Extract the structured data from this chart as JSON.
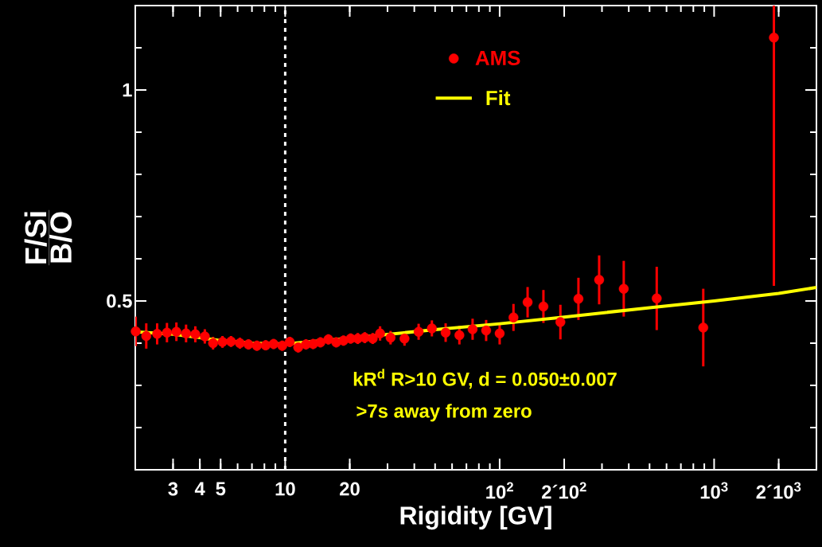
{
  "chart_data": {
    "type": "scatter",
    "xlabel": "Rigidity [GV]",
    "ylabel": "\\frac{\\textbf{F/Si}}{\\textbf{B/O}}",
    "log": "x",
    "xlim": [
      2,
      3000
    ],
    "ylim": [
      0.1,
      1.2
    ],
    "xticks": [
      3,
      4,
      5,
      10,
      20,
      {
        "value": 100,
        "label": "10$^{2}$"
      },
      {
        "value": 200,
        "label": "2´10$^{2}$"
      },
      {
        "value": 1000,
        "label": "10$^{3}$"
      },
      {
        "value": 2000,
        "label": "2´10$^{3}$"
      }
    ],
    "yticks": [
      {
        "value": 0.2,
        "label": null
      },
      {
        "value": 0.3,
        "label": null
      },
      {
        "value": 0.4,
        "label": null
      },
      0.5,
      {
        "value": 0.6,
        "label": null
      },
      {
        "value": 0.7,
        "label": null
      },
      {
        "value": 0.8,
        "label": null
      },
      {
        "value": 0.9,
        "label": null
      },
      1,
      {
        "value": 1.1,
        "label": null
      }
    ],
    "marker": "circle",
    "legend": "top",
    "ref_lines": [
      {
        "axis": "x",
        "value": 10,
        "color": "#ffffff",
        "line_style": "dotted"
      }
    ],
    "annotations": [
      "kR$^{d}$ R>10 GV, d = 0.050±0.007",
      ">7s away from zero"
    ],
    "series": [
      {
        "name": "AMS",
        "color": "#ff0000",
        "x": [
          2.01,
          2.25,
          2.53,
          2.81,
          3.11,
          3.45,
          3.81,
          4.22,
          4.61,
          5.1,
          5.59,
          6.15,
          6.74,
          7.38,
          8.11,
          8.83,
          9.69,
          10.5,
          11.5,
          12.5,
          13.5,
          14.6,
          15.9,
          17.3,
          18.7,
          20.2,
          21.8,
          23.5,
          25.6,
          27.7,
          31.0,
          36.0,
          41.9,
          48.3,
          56.0,
          64.9,
          74.8,
          86.5,
          100,
          116,
          135,
          160,
          192,
          233,
          291,
          379,
          540,
          890,
          1900
        ],
        "values": [
          0.428,
          0.417,
          0.422,
          0.425,
          0.427,
          0.423,
          0.421,
          0.416,
          0.4,
          0.403,
          0.404,
          0.4,
          0.397,
          0.394,
          0.395,
          0.398,
          0.394,
          0.403,
          0.39,
          0.397,
          0.398,
          0.402,
          0.409,
          0.402,
          0.406,
          0.411,
          0.411,
          0.413,
          0.411,
          0.423,
          0.413,
          0.411,
          0.427,
          0.435,
          0.425,
          0.419,
          0.433,
          0.43,
          0.423,
          0.461,
          0.497,
          0.487,
          0.45,
          0.505,
          0.55,
          0.529,
          0.506,
          0.437,
          1.124
        ],
        "errors": [
          0.035,
          0.03,
          0.025,
          0.023,
          0.022,
          0.021,
          0.019,
          0.017,
          0.015,
          0.014,
          0.013,
          0.013,
          0.012,
          0.012,
          0.012,
          0.012,
          0.012,
          0.012,
          0.012,
          0.012,
          0.012,
          0.012,
          0.012,
          0.012,
          0.012,
          0.012,
          0.013,
          0.013,
          0.013,
          0.017,
          0.016,
          0.017,
          0.019,
          0.019,
          0.022,
          0.022,
          0.025,
          0.025,
          0.026,
          0.032,
          0.036,
          0.039,
          0.041,
          0.05,
          0.058,
          0.066,
          0.075,
          0.092,
          [
            0.536,
            1.2
          ]
        ]
      },
      {
        "name": "Fit",
        "type": "line",
        "color": "#ffff00",
        "marker": "none",
        "x": [
          2,
          3,
          4,
          5,
          7,
          10,
          20,
          50,
          100,
          200,
          500,
          1000,
          2000,
          3000
        ],
        "values": [
          0.427,
          0.421,
          0.413,
          0.406,
          0.4,
          0.398,
          0.412,
          0.432,
          0.446,
          0.462,
          0.484,
          0.5,
          0.518,
          0.532
        ]
      }
    ]
  }
}
